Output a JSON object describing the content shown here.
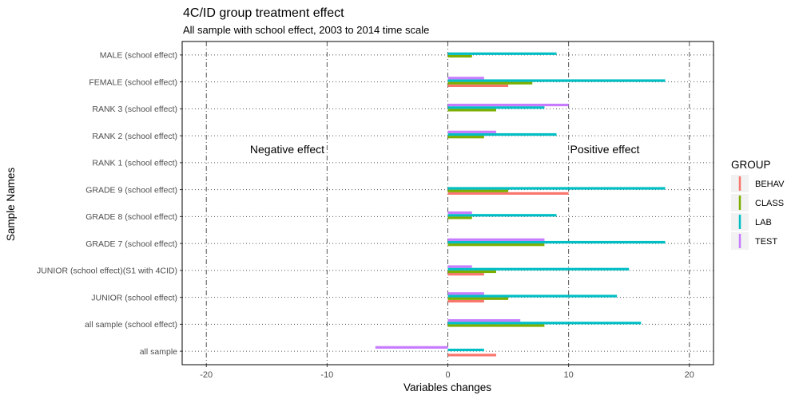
{
  "chart_data": {
    "type": "bar",
    "orientation": "horizontal",
    "title": "4C/ID group treatment effect",
    "subtitle": "All sample with school effect, 2003 to 2014 time scale",
    "xlabel": "Variables changes",
    "ylabel": "Sample Names",
    "xlim": [
      -22,
      22
    ],
    "xticks": [
      -20,
      -10,
      0,
      10,
      20
    ],
    "xtick_labels": [
      "-20",
      "-10",
      "0",
      "10",
      "20"
    ],
    "grid": true,
    "legend_position": "right",
    "legend_title": "GROUP",
    "categories": [
      "all sample",
      "all sample (school effect)",
      "JUNIOR (school effect)",
      "JUNIOR (school effect)(S1 with 4CID)",
      "GRADE 7 (school effect)",
      "GRADE 8 (school effect)",
      "GRADE 9 (school effect)",
      "RANK 1 (school effect)",
      "RANK 2 (school effect)",
      "RANK 3 (school effect)",
      "FEMALE (school effect)",
      "MALE (school effect)"
    ],
    "series": [
      {
        "name": "BEHAV",
        "color": "#F8766D",
        "values": [
          4,
          0,
          3,
          3,
          0,
          0,
          10,
          0,
          0,
          0,
          5,
          0
        ]
      },
      {
        "name": "CLASS",
        "color": "#7CAE00",
        "values": [
          0,
          8,
          5,
          4,
          8,
          2,
          5,
          0,
          3,
          4,
          7,
          2
        ]
      },
      {
        "name": "LAB",
        "color": "#00BFC4",
        "values": [
          3,
          16,
          14,
          15,
          18,
          9,
          18,
          0,
          9,
          8,
          18,
          9
        ]
      },
      {
        "name": "TEST",
        "color": "#C77CFF",
        "values": [
          -6,
          6,
          3,
          2,
          8,
          2,
          0,
          0,
          4,
          10,
          3,
          0
        ]
      }
    ],
    "annotations": [
      {
        "text": "Negative effect",
        "x": -13.3,
        "y_category": "RANK 1 (school effect)"
      },
      {
        "text": "Positive effect",
        "x": 13,
        "y_category": "RANK 1 (school effect)"
      }
    ]
  }
}
